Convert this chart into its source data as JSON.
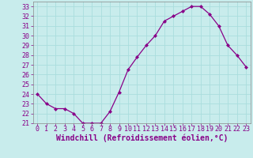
{
  "x": [
    0,
    1,
    2,
    3,
    4,
    5,
    6,
    7,
    8,
    9,
    10,
    11,
    12,
    13,
    14,
    15,
    16,
    17,
    18,
    19,
    20,
    21,
    22,
    23
  ],
  "y": [
    24.0,
    23.0,
    22.5,
    22.5,
    22.0,
    21.0,
    21.0,
    21.0,
    22.2,
    24.2,
    26.5,
    27.8,
    29.0,
    30.0,
    31.5,
    32.0,
    32.5,
    33.0,
    33.0,
    32.2,
    31.0,
    29.0,
    28.0,
    26.8
  ],
  "line_color": "#880088",
  "marker": "D",
  "marker_size": 2.0,
  "background_color": "#c8ecec",
  "grid_color": "#aadddd",
  "xlabel": "Windchill (Refroidissement éolien,°C)",
  "xlabel_fontsize": 7,
  "tick_fontsize": 6,
  "ylim": [
    21,
    33.5
  ],
  "yticks": [
    21,
    22,
    23,
    24,
    25,
    26,
    27,
    28,
    29,
    30,
    31,
    32,
    33
  ],
  "xlim": [
    -0.5,
    23.5
  ],
  "xtick_labels": [
    "0",
    "1",
    "2",
    "3",
    "4",
    "5",
    "6",
    "7",
    "8",
    "9",
    "10",
    "11",
    "12",
    "13",
    "14",
    "15",
    "16",
    "17",
    "18",
    "19",
    "20",
    "21",
    "22",
    "23"
  ]
}
